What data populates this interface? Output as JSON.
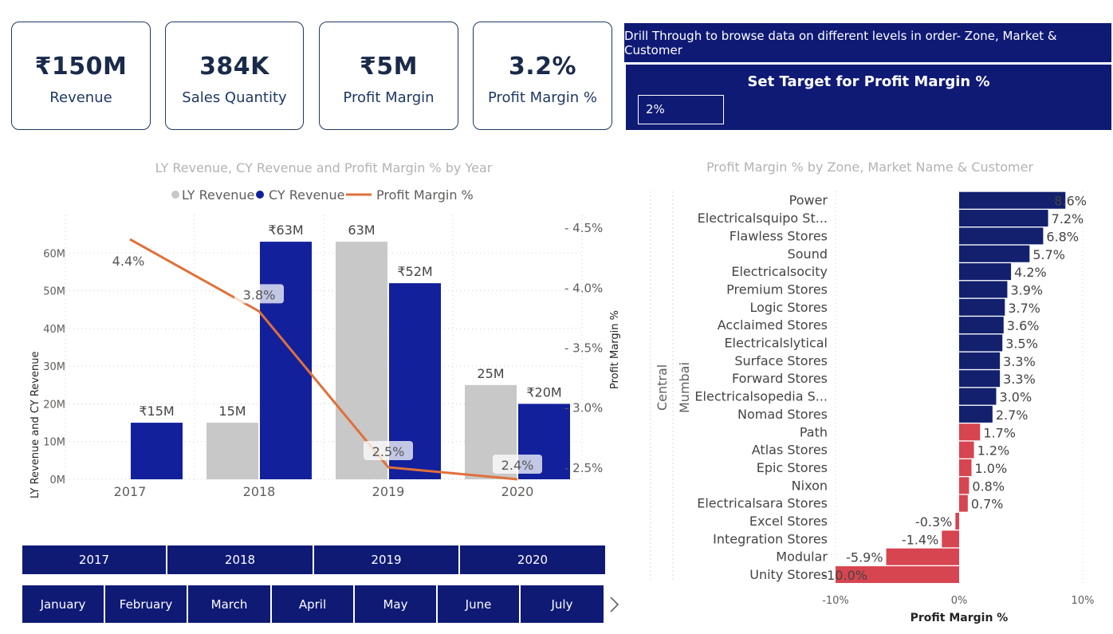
{
  "kpis": [
    {
      "value": "₹150M",
      "label": "Revenue"
    },
    {
      "value": "384K",
      "label": "Sales Quantity"
    },
    {
      "value": "₹5M",
      "label": "Profit Margin"
    },
    {
      "value": "3.2%",
      "label": "Profit Margin %"
    }
  ],
  "drill_text": "Drill Through to browse data on different levels in order- Zone, Market & Customer",
  "target": {
    "title": "Set Target for Profit Margin %",
    "value": "2%"
  },
  "year_slicer": [
    "2017",
    "2018",
    "2019",
    "2020"
  ],
  "month_slicer": [
    "January",
    "February",
    "March",
    "April",
    "May",
    "June",
    "July"
  ],
  "colors": {
    "ly": "#c8c8c8",
    "cy": "#12209c",
    "line": "#e0703a",
    "positive": "#12206e",
    "negative": "#d64550",
    "panel": "#0f1a75"
  },
  "chart_data": [
    {
      "type": "bar",
      "title": "LY Revenue, CY Revenue and Profit Margin % by Year",
      "legend_position": "top",
      "categories": [
        "2017",
        "2018",
        "2019",
        "2020"
      ],
      "series": [
        {
          "name": "LY Revenue",
          "type": "bar",
          "values": [
            0,
            15,
            63,
            25
          ],
          "labels": [
            "",
            "15M",
            "63M",
            "25M"
          ]
        },
        {
          "name": "CY Revenue",
          "type": "bar",
          "values": [
            15,
            63,
            52,
            20
          ],
          "labels": [
            "₹15M",
            "₹63M",
            "₹52M",
            "₹20M"
          ]
        },
        {
          "name": "Profit Margin %",
          "type": "line",
          "axis": "right",
          "values": [
            4.4,
            3.8,
            2.5,
            2.4
          ],
          "labels": [
            "4.4%",
            "3.8%",
            "2.5%",
            "2.4%"
          ]
        }
      ],
      "ylabel": "LY Revenue and CY Revenue",
      "y2label": "Profit Margin %",
      "ylim": [
        0,
        70
      ],
      "y_ticks": [
        0,
        10,
        20,
        30,
        40,
        50,
        60
      ],
      "y_tick_labels": [
        "0M",
        "10M",
        "20M",
        "30M",
        "40M",
        "50M",
        "60M"
      ],
      "y2lim": [
        2.4,
        4.6
      ],
      "y2_ticks": [
        2.5,
        3.0,
        3.5,
        4.0,
        4.5
      ],
      "y2_tick_labels": [
        "2.5%",
        "3.0%",
        "3.5%",
        "4.0%",
        "4.5%"
      ],
      "grid": true
    },
    {
      "type": "bar",
      "orientation": "horizontal",
      "title": "Profit Margin % by Zone, Market Name & Customer",
      "zone": "Central",
      "market": "Mumbai",
      "categories": [
        "Power",
        "Electricalsquipo St...",
        "Flawless Stores",
        "Sound",
        "Electricalsocity",
        "Premium Stores",
        "Logic Stores",
        "Acclaimed Stores",
        "Electricalslytical",
        "Surface Stores",
        "Forward Stores",
        "Electricalsopedia S...",
        "Nomad Stores",
        "Path",
        "Atlas Stores",
        "Epic Stores",
        "Nixon",
        "Electricalsara Stores",
        "Excel Stores",
        "Integration Stores",
        "Modular",
        "Unity Stores"
      ],
      "values": [
        8.6,
        7.2,
        6.8,
        5.7,
        4.2,
        3.9,
        3.7,
        3.6,
        3.5,
        3.3,
        3.3,
        3.0,
        2.7,
        1.7,
        1.2,
        1.0,
        0.8,
        0.7,
        -0.3,
        -1.4,
        -5.9,
        -10.0
      ],
      "labels": [
        "8.6%",
        "7.2%",
        "6.8%",
        "5.7%",
        "4.2%",
        "3.9%",
        "3.7%",
        "3.6%",
        "3.5%",
        "3.3%",
        "3.3%",
        "3.0%",
        "2.7%",
        "1.7%",
        "1.2%",
        "1.0%",
        "0.8%",
        "0.7%",
        "-0.3%",
        "-1.4%",
        "-5.9%",
        "-10.0%"
      ],
      "xlabel": "Profit Margin %",
      "xlim": [
        -10,
        10
      ],
      "x_ticks": [
        -10,
        0,
        10
      ],
      "x_tick_labels": [
        "-10%",
        "0%",
        "10%"
      ],
      "target": 2
    }
  ]
}
